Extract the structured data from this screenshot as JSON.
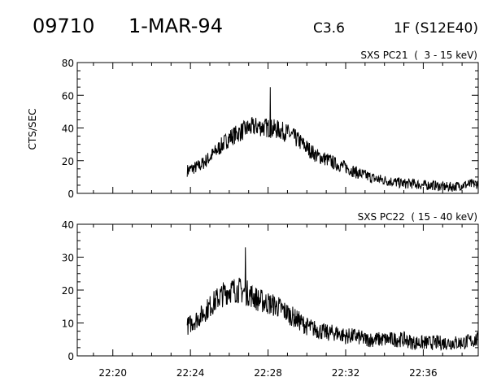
{
  "header": {
    "event_number": "09710",
    "date": "1-MAR-94",
    "goes_class": "C3.6",
    "optical": "1F (S12E40)"
  },
  "chart_data": [
    {
      "type": "line",
      "title": "SXS PC21  (  3 - 15 keV)",
      "xlabel": "",
      "ylabel": "CTS/SEC",
      "xlim": [
        "22:18:10",
        "22:38:50"
      ],
      "ylim": [
        0,
        80
      ],
      "y_ticks": [
        "0",
        "20",
        "40",
        "60",
        "80"
      ],
      "x_ticks": [
        "22:20",
        "22:24",
        "22:28",
        "22:32",
        "22:36"
      ],
      "grid": false,
      "series": [
        {
          "x": [
            "22:23:50",
            "22:24:30",
            "22:25:00",
            "22:25:30",
            "22:26:00",
            "22:26:30",
            "22:27:00",
            "22:27:30",
            "22:28:00",
            "22:28:30",
            "22:29:00",
            "22:29:30",
            "22:30:00",
            "22:30:30",
            "22:31:00",
            "22:31:30",
            "22:32:00",
            "22:32:30",
            "22:33:00",
            "22:33:30",
            "22:34:00",
            "22:34:30",
            "22:35:00",
            "22:35:30",
            "22:36:00",
            "22:36:30",
            "22:37:00",
            "22:37:30",
            "22:38:00",
            "22:38:50"
          ],
          "values": [
            14,
            17,
            22,
            28,
            34,
            37,
            40,
            41,
            40,
            39,
            37,
            33,
            28,
            23,
            21,
            18,
            16,
            13,
            11,
            9,
            8,
            7,
            6,
            6,
            5,
            5,
            4,
            4,
            5,
            6
          ],
          "noise": 6,
          "spikes": [
            [
              "22:28:07",
              65
            ]
          ]
        }
      ]
    },
    {
      "type": "line",
      "title": "SXS PC22  ( 15 - 40 keV)",
      "xlabel": "",
      "ylabel": "",
      "xlim": [
        "22:18:10",
        "22:38:50"
      ],
      "ylim": [
        0,
        40
      ],
      "y_ticks": [
        "0",
        "10",
        "20",
        "30",
        "40"
      ],
      "x_ticks": [
        "22:20",
        "22:24",
        "22:28",
        "22:32",
        "22:36"
      ],
      "grid": false,
      "series": [
        {
          "x": [
            "22:23:50",
            "22:24:30",
            "22:25:00",
            "22:25:30",
            "22:26:00",
            "22:26:30",
            "22:27:00",
            "22:27:30",
            "22:28:00",
            "22:28:30",
            "22:29:00",
            "22:29:30",
            "22:30:00",
            "22:30:30",
            "22:31:00",
            "22:31:30",
            "22:32:00",
            "22:32:30",
            "22:33:00",
            "22:33:30",
            "22:34:00",
            "22:34:30",
            "22:35:00",
            "22:35:30",
            "22:36:00",
            "22:36:30",
            "22:37:00",
            "22:37:30",
            "22:38:00",
            "22:38:50"
          ],
          "values": [
            9,
            12,
            15,
            18,
            20,
            20,
            19,
            17,
            16,
            15,
            13,
            11,
            9,
            8,
            7,
            7,
            6,
            6,
            5,
            5,
            5,
            5,
            5,
            4,
            4,
            4,
            4,
            4,
            4,
            5
          ],
          "noise": 4,
          "spikes": [
            [
              "22:26:50",
              33
            ]
          ]
        }
      ]
    }
  ]
}
